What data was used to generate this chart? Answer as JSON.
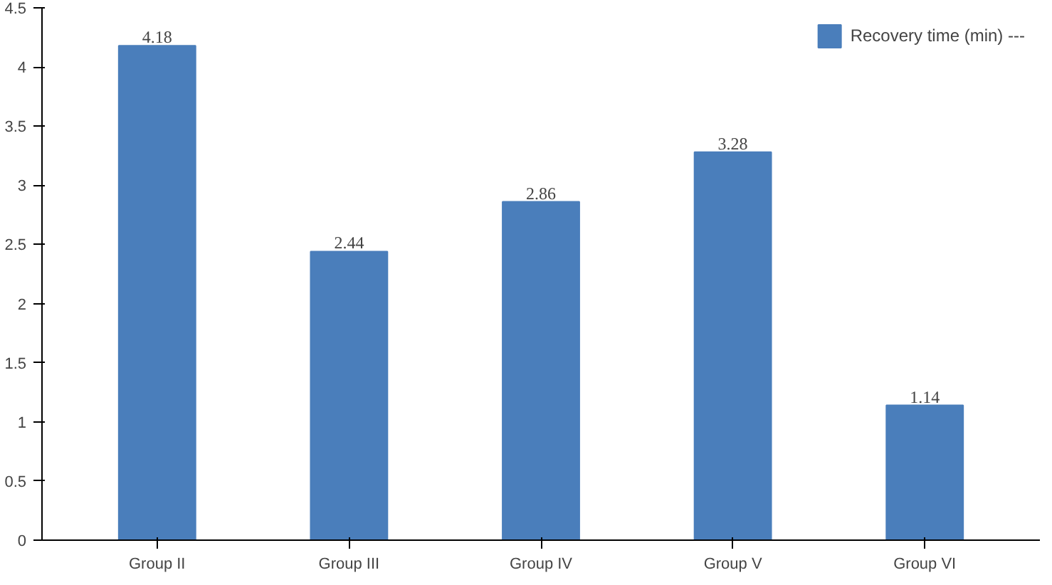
{
  "chart_data": {
    "type": "bar",
    "categories": [
      "Group II",
      "Group III",
      "Group IV",
      "Group V",
      "Group VI"
    ],
    "series": [
      {
        "name": "Recovery time (min) ---",
        "color": "#4a7ebb",
        "values": [
          4.18,
          2.44,
          2.86,
          3.28,
          1.14
        ]
      }
    ],
    "ylim": [
      0,
      4.5
    ],
    "yticks": [
      0,
      0.5,
      1,
      1.5,
      2,
      2.5,
      3,
      3.5,
      4,
      4.5
    ],
    "data_labels": true,
    "legend": "top right"
  }
}
